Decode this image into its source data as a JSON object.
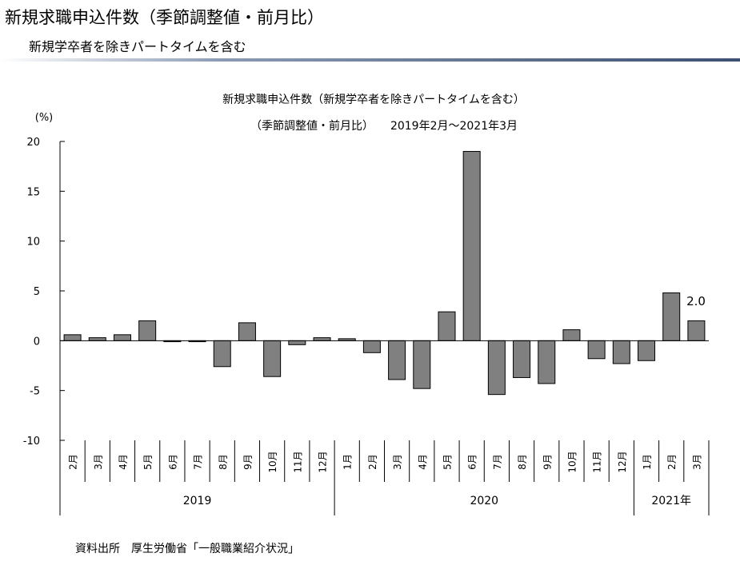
{
  "header": {
    "title": "新規求職申込件数（季節調整値・前月比）",
    "subtitle": "新規学卒者を除きパートタイムを含む"
  },
  "source": "資料出所　厚生労働省「一般職業紹介状況」",
  "chart_data": {
    "type": "bar",
    "title": "新規求職申込件数（新規学卒者を除きパートタイムを含む）",
    "subtitle": "（季節調整値・前月比）　　2019年2月～2021年3月",
    "ylabel": "(%)",
    "ylim": [
      -10,
      20
    ],
    "yticks": [
      20,
      15,
      10,
      5,
      0,
      -5,
      -10
    ],
    "bar_color": "#808080",
    "categories": [
      "2月",
      "3月",
      "4月",
      "5月",
      "6月",
      "7月",
      "8月",
      "9月",
      "10月",
      "11月",
      "12月",
      "1月",
      "2月",
      "3月",
      "4月",
      "5月",
      "6月",
      "7月",
      "8月",
      "9月",
      "10月",
      "11月",
      "12月",
      "1月",
      "2月",
      "3月"
    ],
    "values": [
      0.6,
      0.3,
      0.6,
      2.0,
      -0.1,
      -0.1,
      -2.6,
      1.8,
      -3.6,
      -0.4,
      0.3,
      0.2,
      -1.2,
      -3.9,
      -4.8,
      2.9,
      19.0,
      -5.4,
      -3.7,
      -4.3,
      1.1,
      -1.8,
      -2.3,
      -2.0,
      4.8,
      2.0
    ],
    "year_groups": [
      {
        "label": "2019",
        "count": 11
      },
      {
        "label": "2020",
        "count": 12
      },
      {
        "label": "2021年",
        "count": 3
      }
    ],
    "annotation": "2.0"
  }
}
